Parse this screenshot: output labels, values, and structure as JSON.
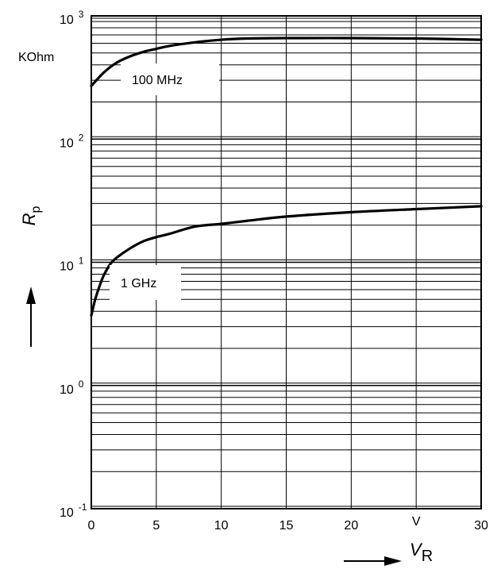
{
  "chart_data": {
    "type": "line",
    "x_scale": "linear",
    "y_scale": "log",
    "xlim": [
      0,
      30
    ],
    "ylim": [
      0.1,
      1000
    ],
    "x_ticks": [
      0,
      5,
      10,
      15,
      20,
      30
    ],
    "x_tick_labels": [
      "0",
      "5",
      "10",
      "15",
      "20",
      "30"
    ],
    "x_unit_label": "V",
    "x_unit_position": 25,
    "y_decades": [
      {
        "value": 1000,
        "base": "10",
        "exp": "3"
      },
      {
        "value": 100,
        "base": "10",
        "exp": "2"
      },
      {
        "value": 10,
        "base": "10",
        "exp": "1"
      },
      {
        "value": 1,
        "base": "10",
        "exp": "0"
      },
      {
        "value": 0.1,
        "base": "10",
        "exp": "-1"
      }
    ],
    "y_unit_label": "KOhm",
    "xlabel": {
      "main": "V",
      "sub": "R"
    },
    "ylabel": {
      "main": "R",
      "sub": "p"
    },
    "grid": true,
    "series": [
      {
        "name": "100 MHz",
        "x": [
          0,
          1,
          2,
          3,
          4,
          5,
          6,
          8,
          10,
          12,
          15,
          20,
          25,
          30
        ],
        "y": [
          270,
          350,
          420,
          470,
          510,
          540,
          570,
          610,
          640,
          655,
          660,
          660,
          655,
          640
        ]
      },
      {
        "name": "1 GHz",
        "x": [
          0,
          0.3,
          0.7,
          1,
          1.5,
          2,
          3,
          4,
          5,
          6,
          8,
          10,
          12,
          15,
          20,
          25,
          30
        ],
        "y": [
          3.7,
          5.0,
          6.7,
          8.0,
          9.8,
          11.0,
          13.0,
          14.8,
          16.0,
          17.0,
          19.5,
          20.5,
          21.7,
          23.5,
          25.5,
          27.0,
          28.5
        ]
      }
    ]
  }
}
